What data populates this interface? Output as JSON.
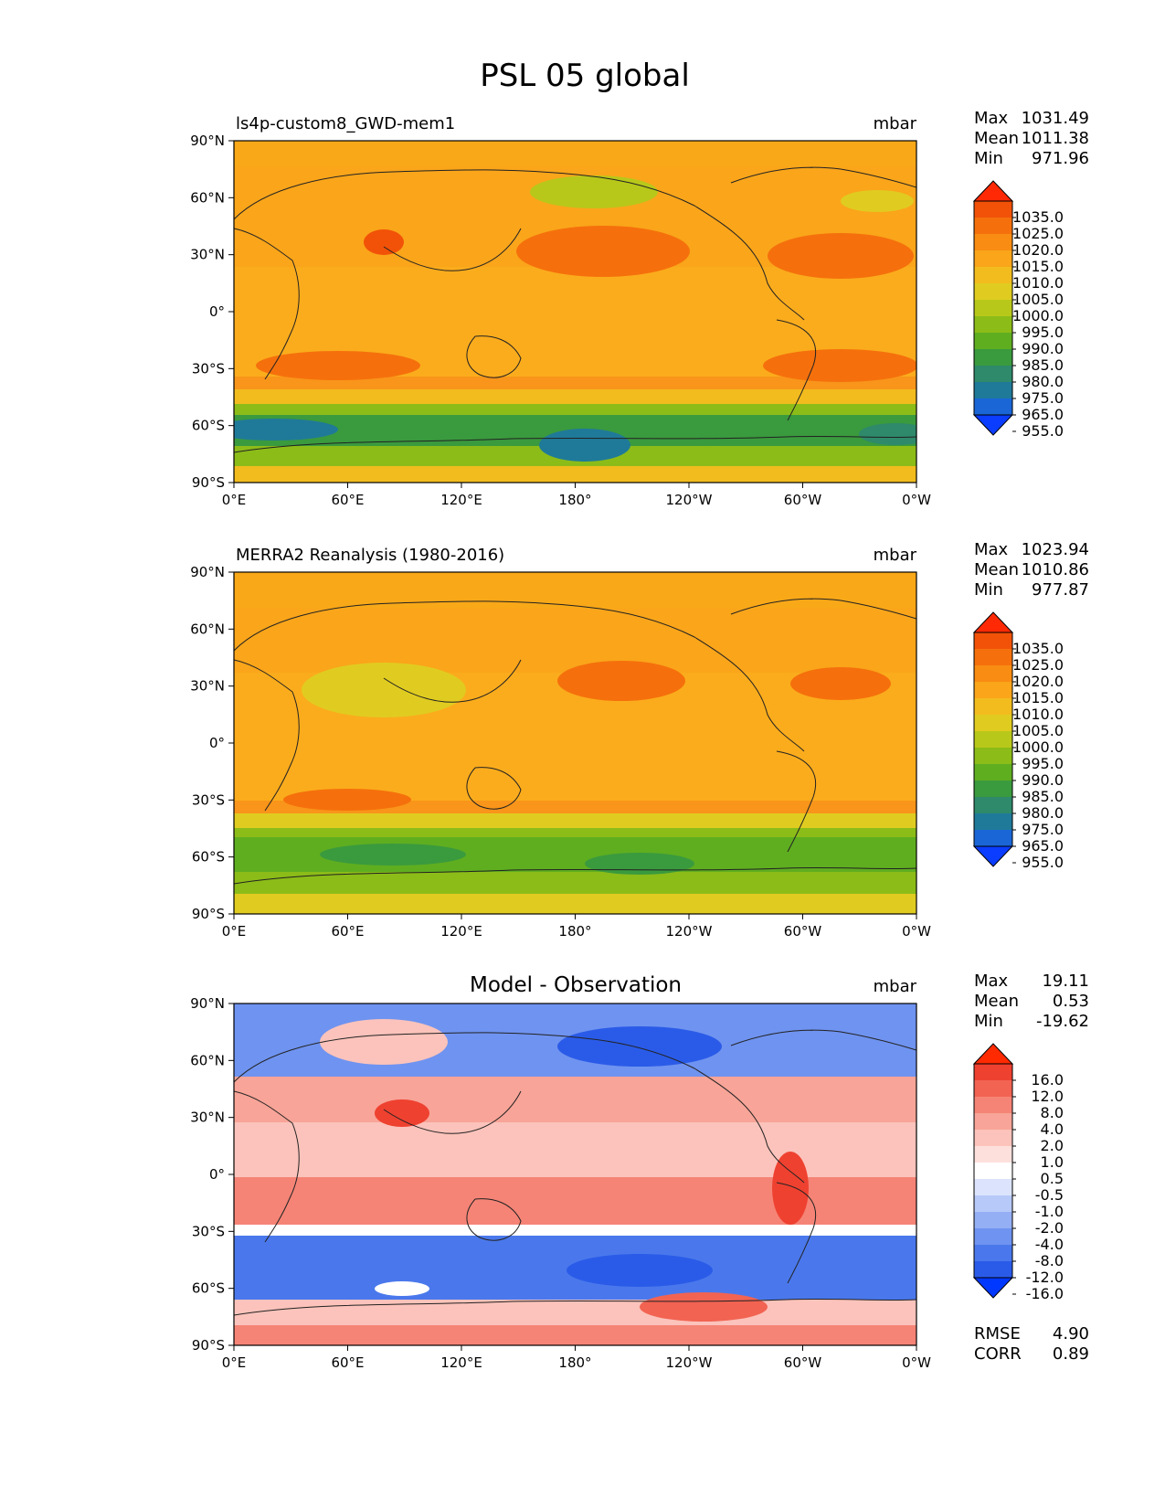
{
  "title": "PSL 05 global",
  "x_ticks": [
    "0°E",
    "60°E",
    "120°E",
    "180°",
    "120°W",
    "60°W",
    "0°W"
  ],
  "y_ticks": [
    "90°N",
    "60°N",
    "30°N",
    "0°",
    "30°S",
    "60°S",
    "90°S"
  ],
  "stat_labels": {
    "max": "Max",
    "mean": "Mean",
    "min": "Min",
    "rmse": "RMSE",
    "corr": "CORR"
  },
  "colors": {
    "abs_palette": [
      "#0a3dff",
      "#1a66d6",
      "#1f7a99",
      "#2e8a6a",
      "#3a9a3e",
      "#5fae20",
      "#8cbc18",
      "#b8c81a",
      "#e0cc20",
      "#f2bc1e",
      "#faa51a",
      "#f98c12",
      "#f5700c",
      "#f25208",
      "#ff2a05"
    ],
    "diff_palette": [
      "#0038ff",
      "#2a5be8",
      "#4a78ec",
      "#6f93f0",
      "#94aff4",
      "#b7c9f8",
      "#dbe4fc",
      "#ffffff",
      "#fde0dc",
      "#fbc3bb",
      "#f8a498",
      "#f58476",
      "#f26352",
      "#ef4130",
      "#ff2a00"
    ]
  },
  "chart_data": [
    {
      "type": "heatmap",
      "subtitle": "ls4p-custom8_GWD-mem1",
      "units": "mbar",
      "stats": {
        "max": "1031.49",
        "mean": "1011.38",
        "min": "971.96"
      },
      "colorbar": {
        "levels": [
          "1035.0",
          "1025.0",
          "1020.0",
          "1015.0",
          "1010.0",
          "1005.0",
          "1000.0",
          "995.0",
          "990.0",
          "985.0",
          "980.0",
          "975.0",
          "965.0",
          "955.0"
        ]
      },
      "xlim": [
        0,
        360
      ],
      "ylim": [
        -90,
        90
      ],
      "xlabel": "",
      "ylabel": ""
    },
    {
      "type": "heatmap",
      "subtitle": "MERRA2 Reanalysis (1980-2016)",
      "units": "mbar",
      "stats": {
        "max": "1023.94",
        "mean": "1010.86",
        "min": "977.87"
      },
      "colorbar": {
        "levels": [
          "1035.0",
          "1025.0",
          "1020.0",
          "1015.0",
          "1010.0",
          "1005.0",
          "1000.0",
          "995.0",
          "990.0",
          "985.0",
          "980.0",
          "975.0",
          "965.0",
          "955.0"
        ]
      },
      "xlim": [
        0,
        360
      ],
      "ylim": [
        -90,
        90
      ],
      "xlabel": "",
      "ylabel": ""
    },
    {
      "type": "heatmap",
      "subtitle": "Model - Observation",
      "units": "mbar",
      "stats": {
        "max": "19.11",
        "mean": "0.53",
        "min": "-19.62",
        "rmse": "4.90",
        "corr": "0.89"
      },
      "colorbar": {
        "levels": [
          "16.0",
          "12.0",
          "8.0",
          "4.0",
          "2.0",
          "1.0",
          "0.5",
          "-0.5",
          "-1.0",
          "-2.0",
          "-4.0",
          "-8.0",
          "-12.0",
          "-16.0"
        ]
      },
      "xlim": [
        0,
        360
      ],
      "ylim": [
        -90,
        90
      ],
      "xlabel": "",
      "ylabel": ""
    }
  ]
}
